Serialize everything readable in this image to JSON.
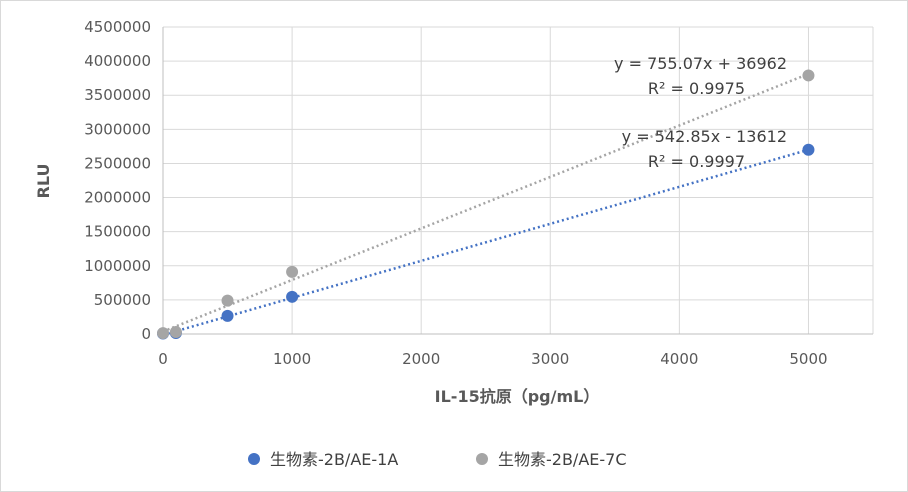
{
  "chart_data": {
    "type": "scatter",
    "title": "",
    "xlabel": "IL-15抗原（pg/mL）",
    "ylabel": "RLU",
    "xlim": [
      0,
      5500
    ],
    "ylim": [
      0,
      4500000
    ],
    "x_ticks": [
      0,
      1000,
      2000,
      3000,
      4000,
      5000
    ],
    "y_ticks": [
      0,
      500000,
      1000000,
      1500000,
      2000000,
      2500000,
      3000000,
      3500000,
      4000000,
      4500000
    ],
    "grid": true,
    "legend_position": "bottom",
    "series": [
      {
        "name": "生物素-2B/AE-1A",
        "color": "#4472c4",
        "x": [
          0,
          100,
          500,
          1000,
          5000
        ],
        "y": [
          8000,
          15000,
          265000,
          545000,
          2700000
        ],
        "trendline": {
          "slope": 542.85,
          "intercept": -13612,
          "equation": "y = 542.85x - 13612",
          "r2": "R² = 0.9997"
        }
      },
      {
        "name": "生物素-2B/AE-7C",
        "color": "#a5a5a5",
        "x": [
          0,
          100,
          500,
          1000,
          5000
        ],
        "y": [
          12000,
          30000,
          490000,
          910000,
          3790000
        ],
        "trendline": {
          "slope": 755.07,
          "intercept": 36962,
          "equation": "y = 755.07x + 36962",
          "r2": "R² = 0.9975"
        }
      }
    ]
  }
}
